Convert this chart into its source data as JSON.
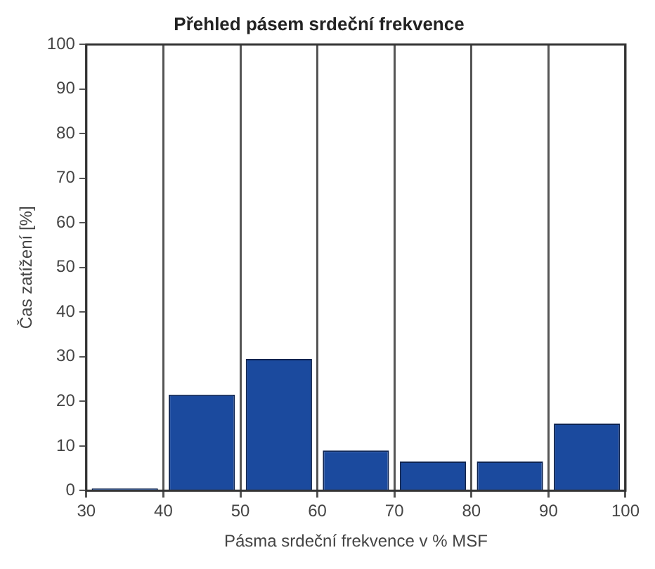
{
  "chart_data": {
    "type": "histogram",
    "title": "Přehled pásem srdeční frekvence",
    "xlabel": "Pásma srdeční frekvence v % MSF",
    "ylabel": "Čas zatížení [%]",
    "bins": [
      30,
      40,
      50,
      60,
      70,
      80,
      90,
      100
    ],
    "values": [
      0.5,
      21.5,
      29.5,
      9,
      6.5,
      6.5,
      15
    ],
    "color": "#1b4a9e",
    "xlim": [
      30,
      100
    ],
    "xticks": [
      30,
      40,
      50,
      60,
      70,
      80,
      90,
      100
    ],
    "ylim": [
      0,
      100
    ],
    "yticks": [
      0,
      10,
      20,
      30,
      40,
      50,
      60,
      70,
      80,
      90,
      100
    ],
    "grid": "x",
    "legend": false
  }
}
